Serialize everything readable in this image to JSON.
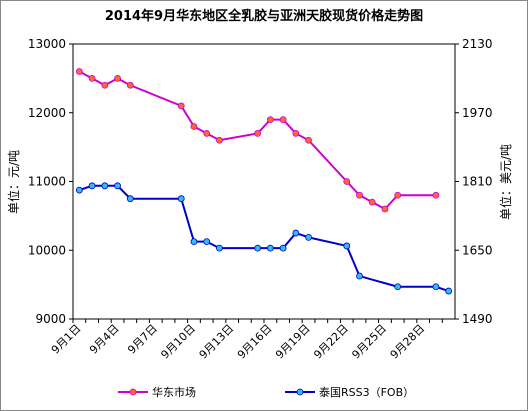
{
  "chart_data": {
    "type": "line",
    "title": "2014年9月华东地区全乳胶与亚洲天胶现货价格走势图",
    "ylabel": "单位：元/吨",
    "y2label": "单位：美元/吨",
    "categories": [
      "9月1日",
      null,
      null,
      "9月4日",
      null,
      null,
      "9月7日",
      null,
      null,
      "9月10日",
      null,
      null,
      "9月13日",
      null,
      null,
      "9月16日",
      null,
      null,
      "9月19日",
      null,
      null,
      "9月22日",
      null,
      null,
      "9月25日",
      null,
      null,
      "9月28日",
      null,
      null
    ],
    "ylim": [
      9000,
      13000
    ],
    "yticks": [
      9000,
      10000,
      11000,
      12000,
      13000
    ],
    "y2lim": [
      1490,
      2130
    ],
    "y2ticks": [
      1490,
      1650,
      1810,
      1970,
      2130
    ],
    "grid": false,
    "legend": "bottom",
    "connect_gaps": true,
    "series": [
      {
        "name": "华东市场",
        "color": "#cc00cc",
        "marker_color": "#ff6633",
        "values": [
          12600,
          12500,
          12400,
          12500,
          12400,
          null,
          null,
          null,
          12100,
          11800,
          11700,
          11600,
          null,
          null,
          11700,
          11900,
          11900,
          11700,
          11600,
          null,
          null,
          11000,
          10800,
          10700,
          10600,
          10800,
          null,
          null,
          10800,
          null
        ]
      },
      {
        "name": "泰国RSS3（FOB）",
        "color": "#0000cc",
        "marker_color": "#33bbee",
        "axis": "y2",
        "values": [
          1790,
          1800,
          1800,
          1800,
          1770,
          null,
          null,
          null,
          1770,
          1670,
          1670,
          1655,
          null,
          null,
          1655,
          1655,
          1655,
          1690,
          1680,
          null,
          null,
          1660,
          1590,
          null,
          null,
          1565,
          null,
          null,
          1565,
          1555
        ]
      }
    ]
  }
}
